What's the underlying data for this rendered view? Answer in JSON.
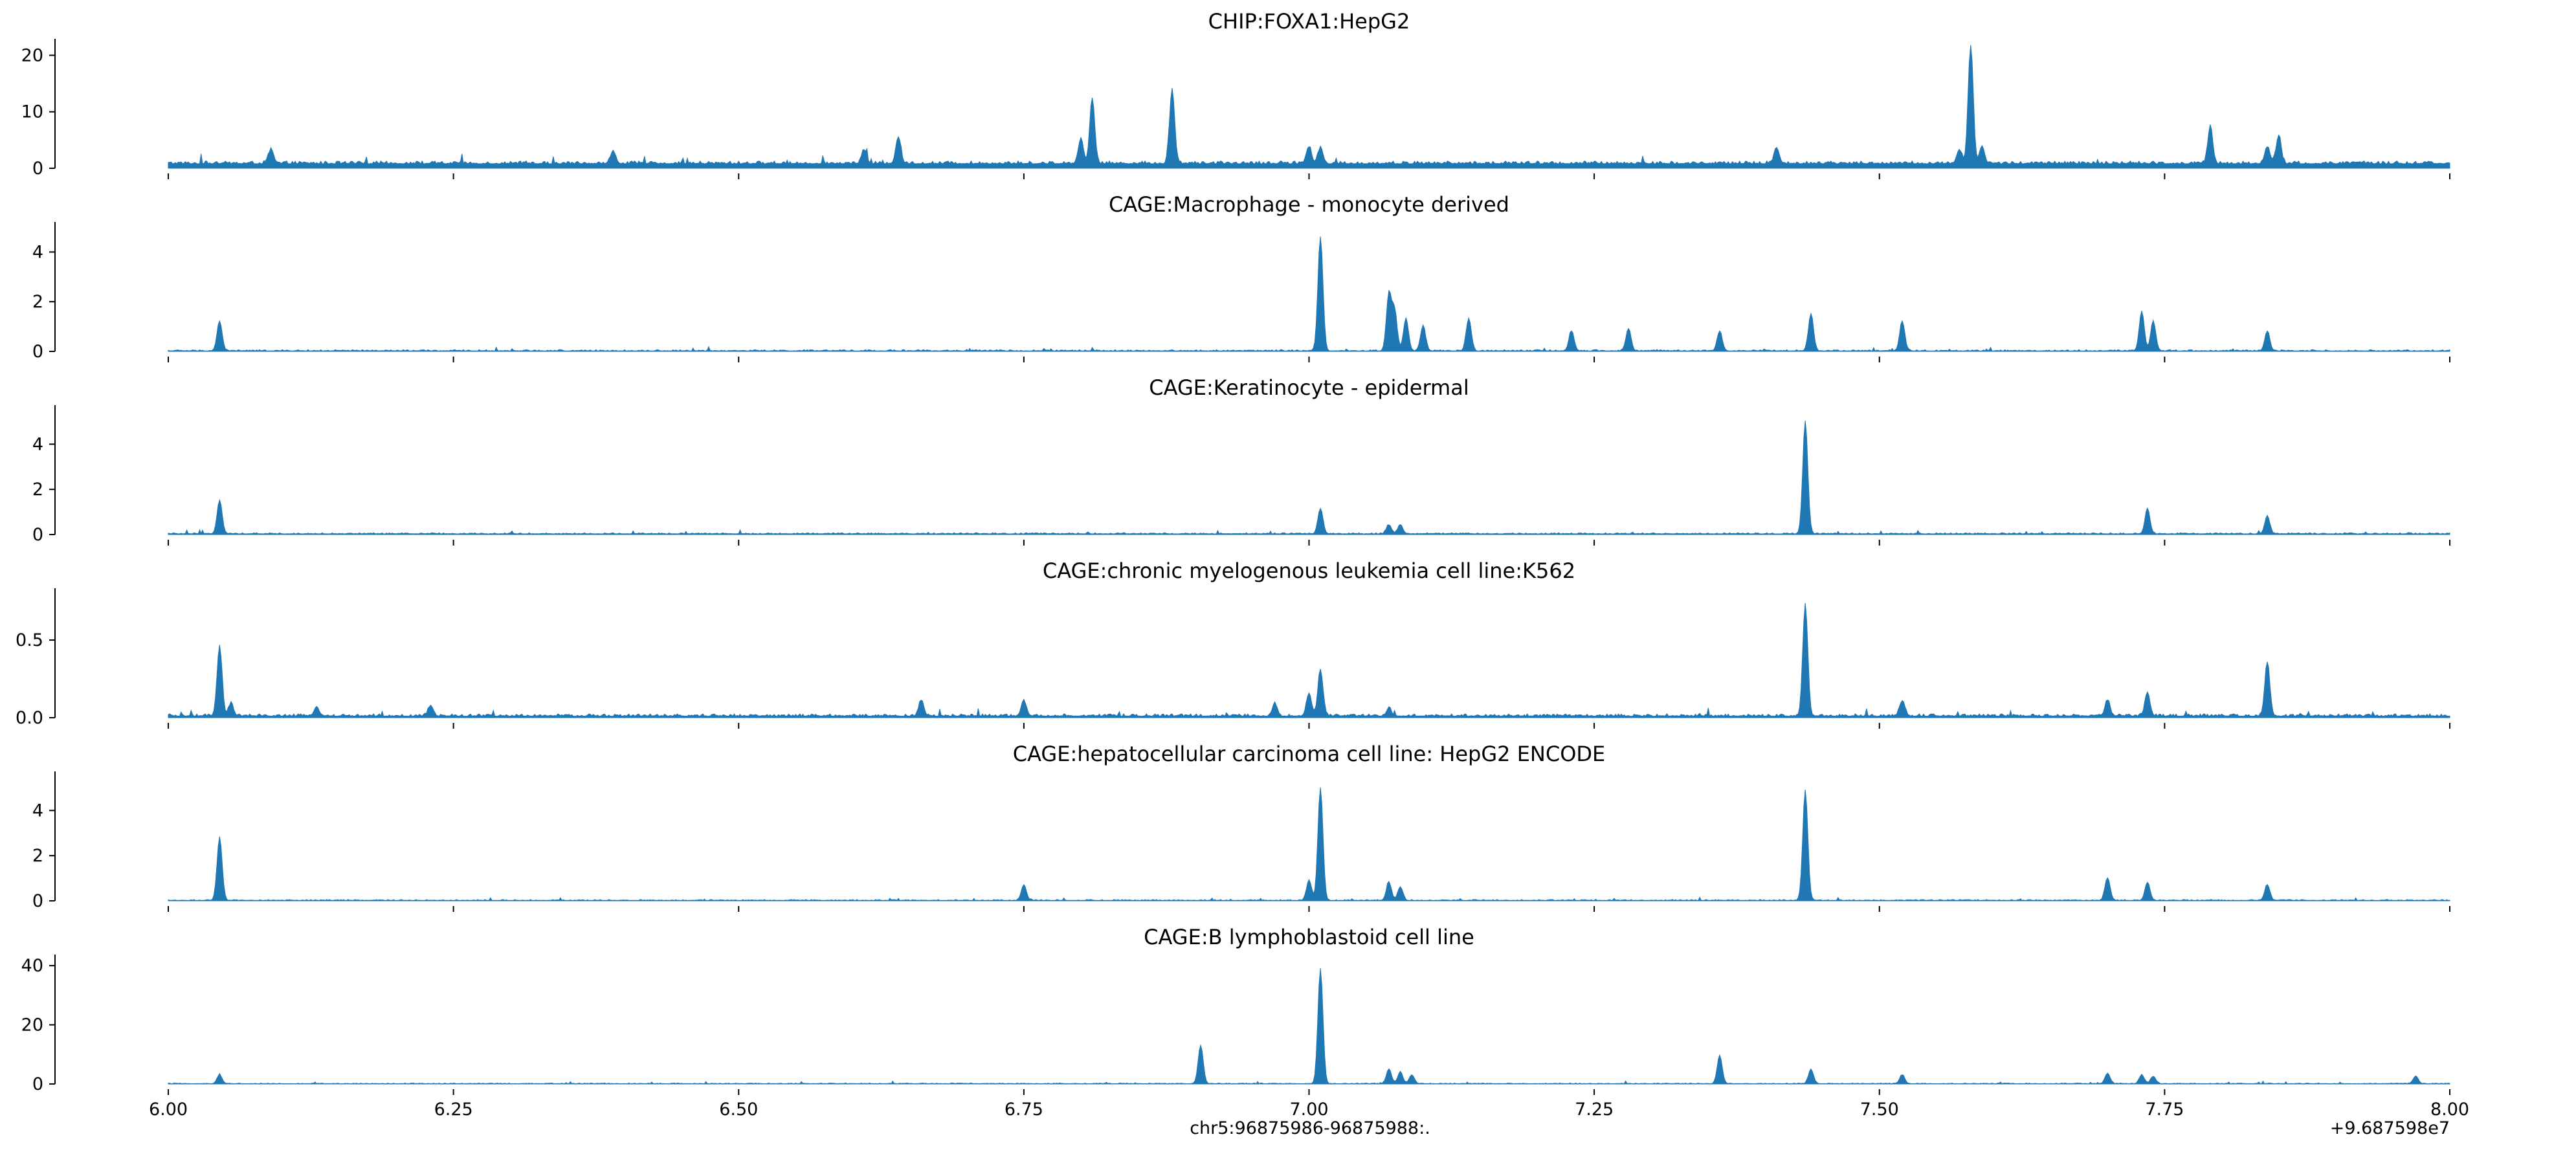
{
  "chart_data": {
    "type": "area",
    "xlabel": "chr5:96875986-96875988:.",
    "x_offset_label": "+9.687598e7",
    "x_ticks": [
      "6.00",
      "6.25",
      "6.50",
      "6.75",
      "7.00",
      "7.25",
      "7.50",
      "7.75",
      "8.00"
    ],
    "x_tick_values": [
      6.0,
      6.25,
      6.5,
      6.75,
      7.0,
      7.25,
      7.5,
      7.75,
      8.0
    ],
    "xlim": [
      6.0,
      8.0
    ],
    "color": "#1f77b4",
    "panels": [
      {
        "title": "CHIP:FOXA1:HepG2",
        "ylim": [
          0,
          22
        ],
        "y_ticks": [
          0,
          10,
          20
        ],
        "y_tick_labels": [
          "0",
          "10",
          "20"
        ],
        "baseline": 0.8,
        "noise": 0.5,
        "peaks": [
          [
            6.09,
            2.5
          ],
          [
            6.39,
            2.2
          ],
          [
            6.61,
            2.5
          ],
          [
            6.64,
            4.8
          ],
          [
            6.8,
            4.5
          ],
          [
            6.81,
            11.5
          ],
          [
            6.88,
            13.2
          ],
          [
            7.0,
            3.0
          ],
          [
            7.01,
            2.8
          ],
          [
            7.41,
            2.8
          ],
          [
            7.57,
            2.5
          ],
          [
            7.58,
            21.0
          ],
          [
            7.59,
            3.0
          ],
          [
            7.79,
            6.5
          ],
          [
            7.84,
            3.0
          ],
          [
            7.85,
            5.0
          ]
        ]
      },
      {
        "title": "CAGE:Macrophage - monocyte derived",
        "ylim": [
          0,
          5
        ],
        "y_ticks": [
          0,
          2,
          4
        ],
        "y_tick_labels": [
          "0",
          "2",
          "4"
        ],
        "baseline": 0.02,
        "noise": 0.05,
        "peaks": [
          [
            6.045,
            1.2
          ],
          [
            7.01,
            4.6
          ],
          [
            7.07,
            2.3
          ],
          [
            7.075,
            1.6
          ],
          [
            7.085,
            1.3
          ],
          [
            7.1,
            1.0
          ],
          [
            7.14,
            1.3
          ],
          [
            7.23,
            0.8
          ],
          [
            7.28,
            0.9
          ],
          [
            7.36,
            0.8
          ],
          [
            7.44,
            1.5
          ],
          [
            7.52,
            1.2
          ],
          [
            7.73,
            1.6
          ],
          [
            7.74,
            1.2
          ],
          [
            7.84,
            0.8
          ]
        ]
      },
      {
        "title": "CAGE:Keratinocyte - epidermal",
        "ylim": [
          0,
          5.5
        ],
        "y_ticks": [
          0,
          2,
          4
        ],
        "y_tick_labels": [
          "0",
          "2",
          "4"
        ],
        "baseline": 0.03,
        "noise": 0.05,
        "peaks": [
          [
            6.045,
            1.5
          ],
          [
            7.01,
            1.1
          ],
          [
            7.07,
            0.4
          ],
          [
            7.08,
            0.4
          ],
          [
            7.435,
            5.0
          ],
          [
            7.735,
            1.1
          ],
          [
            7.84,
            0.8
          ]
        ]
      },
      {
        "title": "CAGE:chronic myelogenous leukemia cell line:K562",
        "ylim": [
          0,
          0.8
        ],
        "y_ticks": [
          0.0,
          0.5
        ],
        "y_tick_labels": [
          "0.0",
          "0.5"
        ],
        "baseline": 0.01,
        "noise": 0.015,
        "peaks": [
          [
            6.045,
            0.45
          ],
          [
            6.055,
            0.08
          ],
          [
            6.13,
            0.06
          ],
          [
            6.23,
            0.07
          ],
          [
            6.66,
            0.1
          ],
          [
            6.75,
            0.1
          ],
          [
            6.97,
            0.08
          ],
          [
            7.0,
            0.15
          ],
          [
            7.01,
            0.3
          ],
          [
            7.07,
            0.05
          ],
          [
            7.435,
            0.72
          ],
          [
            7.52,
            0.1
          ],
          [
            7.7,
            0.1
          ],
          [
            7.735,
            0.15
          ],
          [
            7.84,
            0.35
          ]
        ]
      },
      {
        "title": "CAGE:hepatocellular carcinoma cell line: HepG2 ENCODE",
        "ylim": [
          0,
          5.5
        ],
        "y_ticks": [
          0,
          2,
          4
        ],
        "y_tick_labels": [
          "0",
          "2",
          "4"
        ],
        "baseline": 0.02,
        "noise": 0.04,
        "peaks": [
          [
            6.045,
            2.8
          ],
          [
            6.75,
            0.7
          ],
          [
            7.0,
            0.9
          ],
          [
            7.01,
            5.0
          ],
          [
            7.07,
            0.8
          ],
          [
            7.08,
            0.6
          ],
          [
            7.435,
            4.9
          ],
          [
            7.7,
            1.0
          ],
          [
            7.735,
            0.8
          ],
          [
            7.84,
            0.7
          ]
        ]
      },
      {
        "title": "CAGE:B lymphoblastoid cell line",
        "ylim": [
          0,
          42
        ],
        "y_ticks": [
          0,
          20,
          40
        ],
        "y_tick_labels": [
          "0",
          "20",
          "40"
        ],
        "baseline": 0.1,
        "noise": 0.25,
        "peaks": [
          [
            6.045,
            3.0
          ],
          [
            6.905,
            13.0
          ],
          [
            7.01,
            39.0
          ],
          [
            7.07,
            5.0
          ],
          [
            7.08,
            4.0
          ],
          [
            7.09,
            3.0
          ],
          [
            7.36,
            9.5
          ],
          [
            7.44,
            4.8
          ],
          [
            7.52,
            3.0
          ],
          [
            7.7,
            3.5
          ],
          [
            7.73,
            3.0
          ],
          [
            7.74,
            2.5
          ],
          [
            7.97,
            2.5
          ]
        ]
      }
    ]
  }
}
